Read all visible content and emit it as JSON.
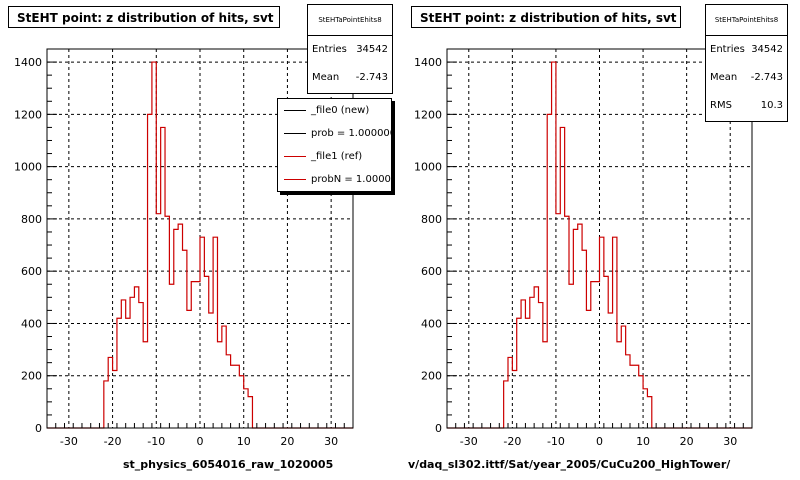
{
  "colors": {
    "hist_line": "#cc0000",
    "frame": "#000000",
    "grid": "#000000",
    "background": "#ffffff"
  },
  "chart_data": [
    {
      "type": "histogram",
      "title": "StEHT point: z distribution of hits, svt",
      "xlabel": "st_physics_6054016_raw_1020005",
      "ylabel": "",
      "xlim": [
        -35,
        35
      ],
      "ylim": [
        0,
        1450
      ],
      "x_ticks": [
        "-30",
        "-20",
        "-10",
        "0",
        "10",
        "20",
        "30"
      ],
      "y_ticks": [
        "0",
        "200",
        "400",
        "600",
        "800",
        "1000",
        "1200",
        "1400"
      ],
      "grid": true,
      "bin_width": 1,
      "bins_start": -22,
      "values": [
        180,
        270,
        220,
        420,
        490,
        420,
        500,
        540,
        480,
        330,
        1200,
        1400,
        820,
        1150,
        810,
        550,
        760,
        780,
        680,
        450,
        560,
        560,
        730,
        580,
        440,
        730,
        330,
        390,
        280,
        240,
        240,
        200,
        150,
        120
      ],
      "stats": {
        "name": "StEHTaPointEhits8",
        "rows": [
          {
            "label": "Entries",
            "value": "34542"
          },
          {
            "label": "Mean",
            "value": "-2.743"
          }
        ]
      },
      "legend": {
        "placement": "top-right",
        "entries": [
          {
            "label": "_file0 (new)",
            "color": "#000000"
          },
          {
            "label": "prob = 1.000000",
            "color": "#000000"
          },
          {
            "label": "_file1 (ref)",
            "color": "#cc0000"
          },
          {
            "label": "probN = 1.000000",
            "color": "#cc0000"
          }
        ]
      }
    },
    {
      "type": "histogram",
      "title": "StEHT point: z distribution of hits, svt",
      "xlabel": "v/daq_sl302.ittf/Sat/year_2005/CuCu200_HighTower/",
      "ylabel": "",
      "xlim": [
        -35,
        35
      ],
      "ylim": [
        0,
        1450
      ],
      "x_ticks": [
        "-30",
        "-20",
        "-10",
        "0",
        "10",
        "20",
        "30"
      ],
      "y_ticks": [
        "0",
        "200",
        "400",
        "600",
        "800",
        "1000",
        "1200",
        "1400"
      ],
      "grid": true,
      "bin_width": 1,
      "bins_start": -22,
      "values": [
        180,
        270,
        220,
        420,
        490,
        420,
        500,
        540,
        480,
        330,
        1200,
        1400,
        820,
        1150,
        810,
        550,
        760,
        780,
        680,
        450,
        560,
        560,
        730,
        580,
        440,
        730,
        330,
        390,
        280,
        240,
        240,
        200,
        150,
        120
      ],
      "stats": {
        "name": "StEHTaPointEhits8",
        "rows": [
          {
            "label": "Entries",
            "value": "34542"
          },
          {
            "label": "Mean",
            "value": "-2.743"
          },
          {
            "label": "RMS",
            "value": "10.3"
          }
        ]
      }
    }
  ]
}
